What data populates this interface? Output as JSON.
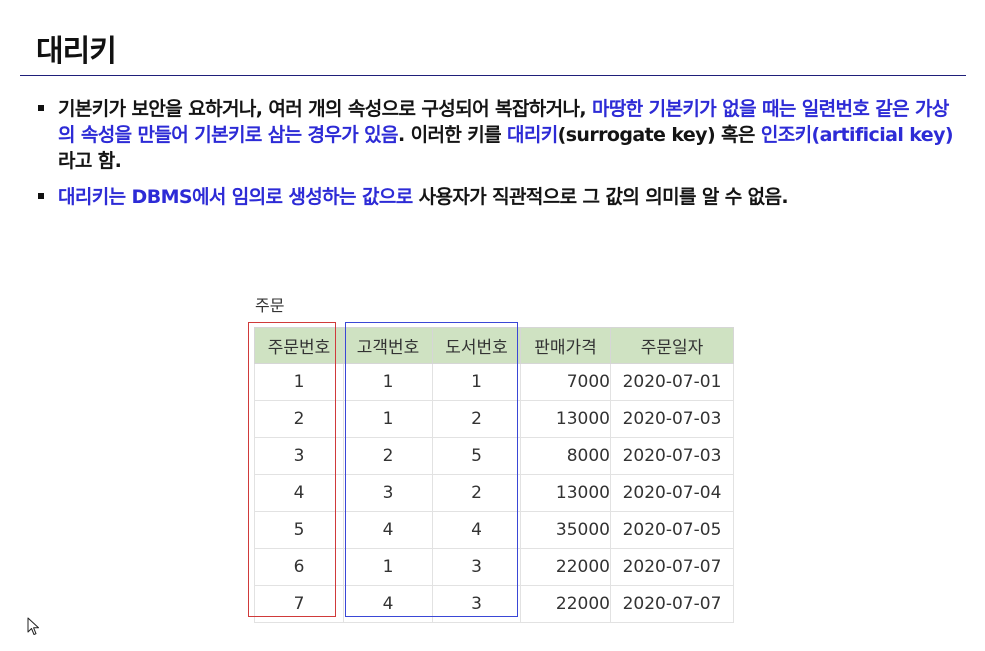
{
  "slide": {
    "title": "대리키"
  },
  "bullets": [
    {
      "p1": "기본키가 보안을 요하거나, 여러 개의 속성으로 구성되어 복잡하거나, ",
      "h1": "마땅한 기본키가 없을 때는 일련번호 같은 가상의 속성을 만들어 기본키로 삼는 경우가 있음",
      "p2": ". 이러한 키를 ",
      "h2": "대리키",
      "p3": "(surrogate key) 혹은 ",
      "h3": "인조키(artificial key)",
      "p4": "라고 함."
    },
    {
      "h1": "대리키는 DBMS에서 임의로 생성하는 값으로",
      "p1": " 사용자가 직관적으로 그 값의 의미를 알 수 없음."
    }
  ],
  "table": {
    "caption": "주문",
    "headers": [
      "주문번호",
      "고객번호",
      "도서번호",
      "판매가격",
      "주문일자"
    ],
    "rows": [
      [
        "1",
        "1",
        "1",
        "7000",
        "2020-07-01"
      ],
      [
        "2",
        "1",
        "2",
        "13000",
        "2020-07-03"
      ],
      [
        "3",
        "2",
        "5",
        "8000",
        "2020-07-03"
      ],
      [
        "4",
        "3",
        "2",
        "13000",
        "2020-07-04"
      ],
      [
        "5",
        "4",
        "4",
        "35000",
        "2020-07-05"
      ],
      [
        "6",
        "1",
        "3",
        "22000",
        "2020-07-07"
      ],
      [
        "7",
        "4",
        "3",
        "22000",
        "2020-07-07"
      ]
    ]
  },
  "colors": {
    "highlight": "#2d2bd6",
    "header_bg": "#cfe2c2",
    "title_rule": "#1f1f7a",
    "surrogate_box": "#d03a3a",
    "foreign_box": "#3a47d6"
  },
  "icons": {
    "cursor": "mouse-pointer-icon"
  }
}
